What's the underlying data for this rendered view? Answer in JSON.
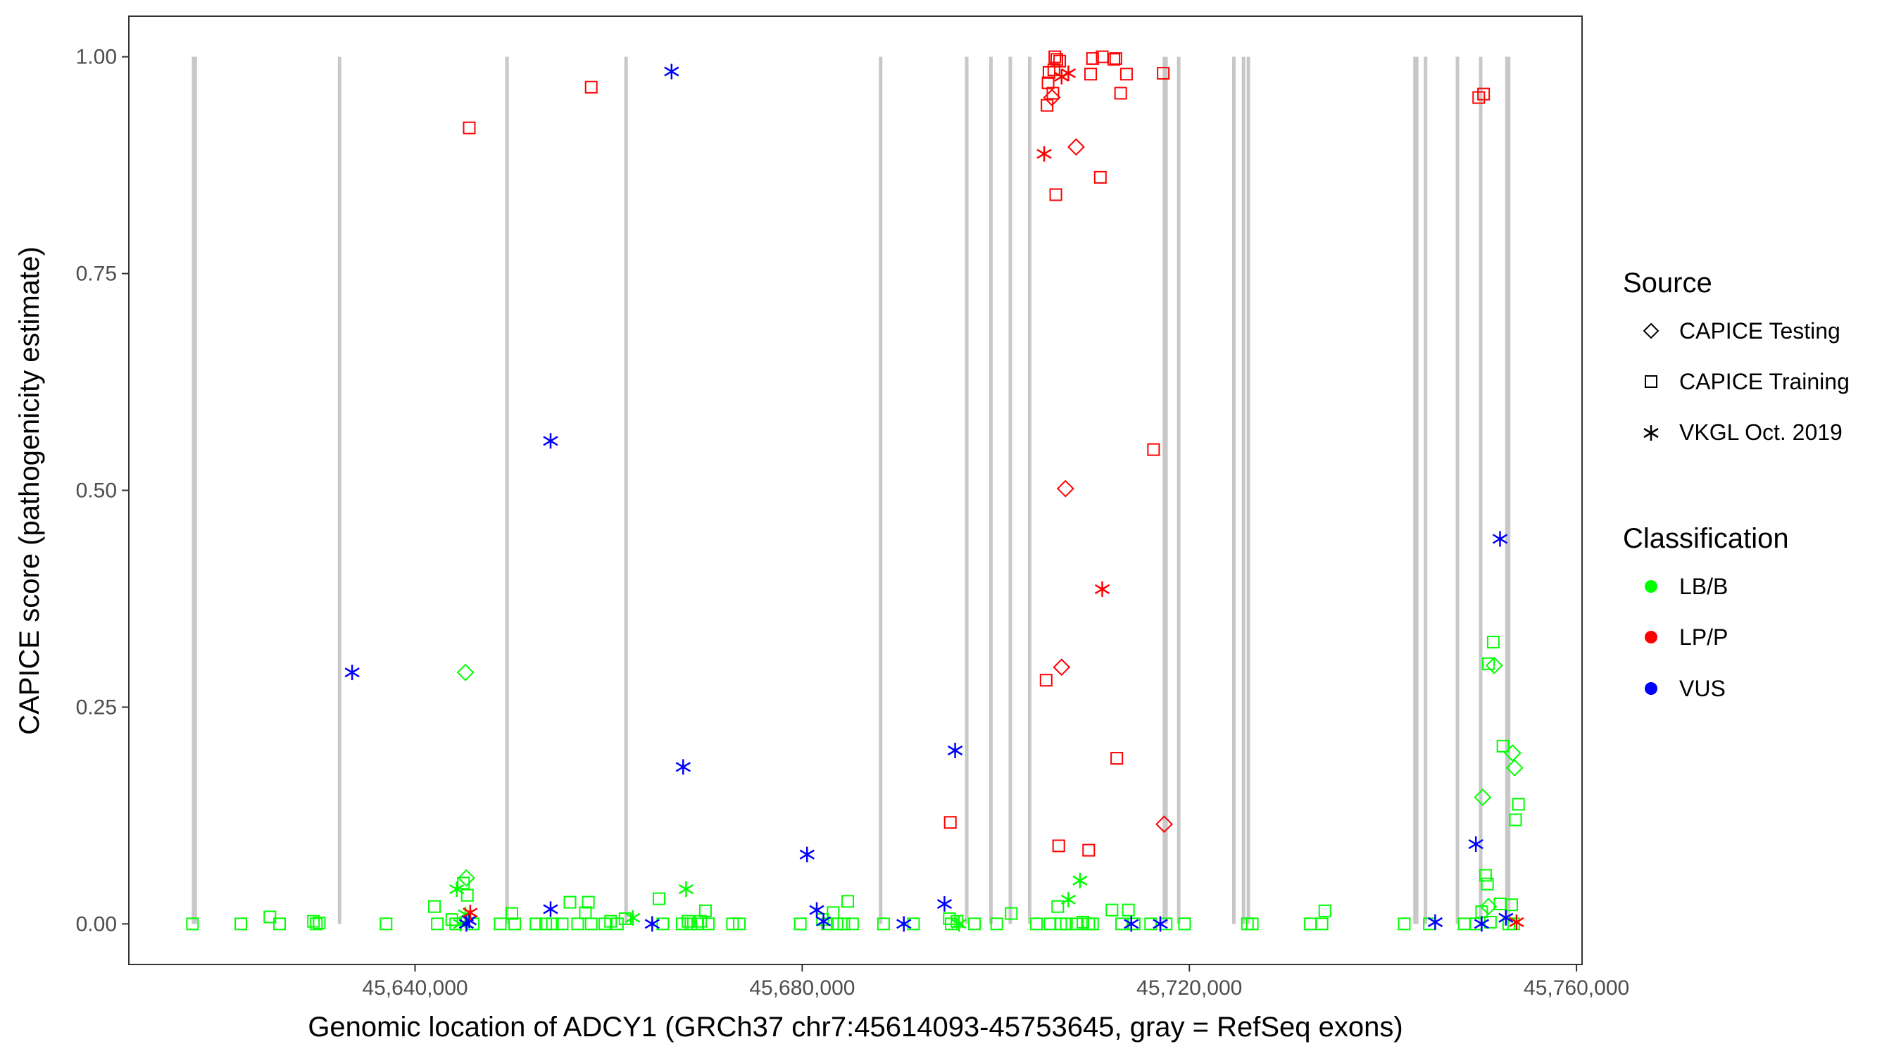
{
  "chart_data": {
    "type": "scatter",
    "xlabel": "Genomic location of ADCY1 (GRCh37 chr7:45614093-45753645, gray = RefSeq exons)",
    "ylabel": "CAPICE score (pathogenicity estimate)",
    "xlim": [
      45610500,
      45760500
    ],
    "ylim": [
      -0.046,
      1.046
    ],
    "x_ticks": [
      {
        "value": 45640000,
        "label": "45,640,000"
      },
      {
        "value": 45680000,
        "label": "45,680,000"
      },
      {
        "value": 45720000,
        "label": "45,720,000"
      },
      {
        "value": 45760000,
        "label": "45,760,000"
      }
    ],
    "y_ticks": [
      {
        "value": 0.0,
        "label": "0.00"
      },
      {
        "value": 0.25,
        "label": "0.25"
      },
      {
        "value": 0.5,
        "label": "0.50"
      },
      {
        "value": 0.75,
        "label": "0.75"
      },
      {
        "value": 1.0,
        "label": "1.00"
      }
    ],
    "grid": false,
    "legend_position": "right",
    "exons": [
      {
        "x": 45617200,
        "w": 0.9
      },
      {
        "x": 45632200,
        "w": 0.5
      },
      {
        "x": 45649500,
        "w": 0.5
      },
      {
        "x": 45661800,
        "w": 0.5
      },
      {
        "x": 45688100,
        "w": 0.5
      },
      {
        "x": 45697000,
        "w": 0.5
      },
      {
        "x": 45699500,
        "w": 0.5
      },
      {
        "x": 45701500,
        "w": 0.5
      },
      {
        "x": 45703500,
        "w": 0.5
      },
      {
        "x": 45717500,
        "w": 0.9
      },
      {
        "x": 45718900,
        "w": 0.5
      },
      {
        "x": 45724600,
        "w": 0.5
      },
      {
        "x": 45725600,
        "w": 0.5
      },
      {
        "x": 45726100,
        "w": 0.5
      },
      {
        "x": 45743400,
        "w": 0.9
      },
      {
        "x": 45744400,
        "w": 0.5
      },
      {
        "x": 45747700,
        "w": 0.5
      },
      {
        "x": 45750100,
        "w": 0.5
      },
      {
        "x": 45752900,
        "w": 0.9
      }
    ],
    "legend": {
      "source_title": "Source",
      "source_items": [
        {
          "label": "CAPICE Testing",
          "shape": "diamond"
        },
        {
          "label": "CAPICE Training",
          "shape": "square"
        },
        {
          "label": "VKGL Oct. 2019",
          "shape": "star"
        }
      ],
      "class_title": "Classification",
      "class_items": [
        {
          "label": "LB/B",
          "color": "#00ff00"
        },
        {
          "label": "LP/P",
          "color": "#ff0000"
        },
        {
          "label": "VUS",
          "color": "#0000ff"
        }
      ]
    },
    "colors": {
      "LB/B": "#00ff00",
      "LP/P": "#ff0000",
      "VUS": "#0000ff"
    },
    "series": [
      {
        "source": "CAPICE Training",
        "classification": "LB/B",
        "shape": "square",
        "points": [
          [
            45617000,
            0.0
          ],
          [
            45622000,
            0.0
          ],
          [
            45625000,
            0.008
          ],
          [
            45626000,
            0.0
          ],
          [
            45629500,
            0.003
          ],
          [
            45629800,
            0.0
          ],
          [
            45630100,
            0.001
          ],
          [
            45637000,
            0.0
          ],
          [
            45642000,
            0.02
          ],
          [
            45642300,
            0.0
          ],
          [
            45643800,
            0.005
          ],
          [
            45644200,
            0.0
          ],
          [
            45645000,
            0.047
          ],
          [
            45645400,
            0.033
          ],
          [
            45646000,
            0.0
          ],
          [
            45648800,
            0.0
          ],
          [
            45650000,
            0.012
          ],
          [
            45650300,
            0.0
          ],
          [
            45652500,
            0.0
          ],
          [
            45653500,
            0.0
          ],
          [
            45654200,
            0.0
          ],
          [
            45655200,
            0.0
          ],
          [
            45656000,
            0.025
          ],
          [
            45656800,
            0.0
          ],
          [
            45657600,
            0.013
          ],
          [
            45657900,
            0.025
          ],
          [
            45658200,
            0.0
          ],
          [
            45659600,
            0.0
          ],
          [
            45660200,
            0.003
          ],
          [
            45660900,
            0.0
          ],
          [
            45661700,
            0.006
          ],
          [
            45665200,
            0.029
          ],
          [
            45665600,
            0.0
          ],
          [
            45667600,
            0.0
          ],
          [
            45668200,
            0.003
          ],
          [
            45668500,
            0.0
          ],
          [
            45669200,
            0.0
          ],
          [
            45669500,
            0.003
          ],
          [
            45670000,
            0.015
          ],
          [
            45670300,
            0.0
          ],
          [
            45672800,
            0.0
          ],
          [
            45673500,
            0.0
          ],
          [
            45679800,
            0.0
          ],
          [
            45682100,
            0.005
          ],
          [
            45682600,
            0.0
          ],
          [
            45683200,
            0.013
          ],
          [
            45683600,
            0.0
          ],
          [
            45684300,
            0.0
          ],
          [
            45684700,
            0.026
          ],
          [
            45685200,
            0.0
          ],
          [
            45688400,
            0.0
          ],
          [
            45691500,
            0.0
          ],
          [
            45695200,
            0.006
          ],
          [
            45695400,
            0.0
          ],
          [
            45696000,
            0.003
          ],
          [
            45697800,
            0.0
          ],
          [
            45700100,
            0.0
          ],
          [
            45701600,
            0.012
          ],
          [
            45704200,
            0.0
          ],
          [
            45705600,
            0.0
          ],
          [
            45706400,
            0.02
          ],
          [
            45706700,
            0.0
          ],
          [
            45707300,
            0.0
          ],
          [
            45708300,
            0.0
          ],
          [
            45709000,
            0.002
          ],
          [
            45709600,
            0.0
          ],
          [
            45710000,
            0.0
          ],
          [
            45712000,
            0.016
          ],
          [
            45713000,
            0.0
          ],
          [
            45713700,
            0.016
          ],
          [
            45714300,
            0.0
          ],
          [
            45716000,
            0.0
          ],
          [
            45717600,
            0.0
          ],
          [
            45719500,
            0.0
          ],
          [
            45726000,
            0.0
          ],
          [
            45726500,
            0.0
          ],
          [
            45732500,
            0.0
          ],
          [
            45733700,
            0.0
          ],
          [
            45734000,
            0.015
          ],
          [
            45742200,
            0.0
          ],
          [
            45744800,
            0.0
          ],
          [
            45748400,
            0.0
          ],
          [
            45749600,
            0.0
          ],
          [
            45750200,
            0.014
          ],
          [
            45750600,
            0.056
          ],
          [
            45750800,
            0.046
          ],
          [
            45750900,
            0.3
          ],
          [
            45751100,
            0.002
          ],
          [
            45751400,
            0.325
          ],
          [
            45752100,
            0.023
          ],
          [
            45752400,
            0.205
          ],
          [
            45753000,
            0.0
          ],
          [
            45753300,
            0.022
          ],
          [
            45753500,
            0.0
          ],
          [
            45753700,
            0.12
          ],
          [
            45754000,
            0.138
          ]
        ]
      },
      {
        "source": "CAPICE Testing",
        "classification": "LB/B",
        "shape": "diamond",
        "points": [
          [
            45645200,
            0.29
          ],
          [
            45645300,
            0.053
          ],
          [
            45750300,
            0.146
          ],
          [
            45750900,
            0.02
          ],
          [
            45751500,
            0.298
          ],
          [
            45753400,
            0.197
          ],
          [
            45753600,
            0.18
          ]
        ]
      },
      {
        "source": "VKGL Oct. 2019",
        "classification": "LB/B",
        "shape": "star",
        "points": [
          [
            45644300,
            0.04
          ],
          [
            45644700,
            0.0
          ],
          [
            45645200,
            0.011
          ],
          [
            45662500,
            0.007
          ],
          [
            45668000,
            0.04
          ],
          [
            45696200,
            0.0
          ],
          [
            45707500,
            0.028
          ],
          [
            45708700,
            0.05
          ]
        ]
      },
      {
        "source": "CAPICE Training",
        "classification": "LP/P",
        "shape": "square",
        "points": [
          [
            45645600,
            0.918
          ],
          [
            45658200,
            0.965
          ],
          [
            45695300,
            0.117
          ],
          [
            45705200,
            0.281
          ],
          [
            45705300,
            0.944
          ],
          [
            45705400,
            0.97
          ],
          [
            45705500,
            0.982
          ],
          [
            45705900,
            0.958
          ],
          [
            45706000,
            0.985
          ],
          [
            45706100,
            1.0
          ],
          [
            45706200,
            0.841
          ],
          [
            45706300,
            0.997
          ],
          [
            45706500,
            0.09
          ],
          [
            45706600,
            0.995
          ],
          [
            45709600,
            0.085
          ],
          [
            45709800,
            0.98
          ],
          [
            45710000,
            0.998
          ],
          [
            45711000,
            1.0
          ],
          [
            45712200,
            0.997
          ],
          [
            45712400,
            0.998
          ],
          [
            45712500,
            0.191
          ],
          [
            45712900,
            0.958
          ],
          [
            45713500,
            0.98
          ],
          [
            45716300,
            0.547
          ],
          [
            45717300,
            0.981
          ],
          [
            45710800,
            0.861
          ],
          [
            45749900,
            0.953
          ],
          [
            45750400,
            0.957
          ]
        ]
      },
      {
        "source": "CAPICE Testing",
        "classification": "LP/P",
        "shape": "diamond",
        "points": [
          [
            45705800,
            0.953
          ],
          [
            45706800,
            0.296
          ],
          [
            45707200,
            0.502
          ],
          [
            45708300,
            0.896
          ],
          [
            45717400,
            0.115
          ]
        ]
      },
      {
        "source": "VKGL Oct. 2019",
        "classification": "LP/P",
        "shape": "star",
        "points": [
          [
            45645700,
            0.013
          ],
          [
            45705000,
            0.888
          ],
          [
            45706800,
            0.977
          ],
          [
            45707500,
            0.981
          ],
          [
            45711000,
            0.386
          ],
          [
            45753800,
            0.002
          ]
        ]
      },
      {
        "source": "VKGL Oct. 2019",
        "classification": "VUS",
        "shape": "star",
        "points": [
          [
            45633500,
            0.29
          ],
          [
            45645300,
            0.0
          ],
          [
            45645600,
            0.004
          ],
          [
            45654000,
            0.557
          ],
          [
            45654000,
            0.017
          ],
          [
            45664500,
            0.0
          ],
          [
            45666500,
            0.983
          ],
          [
            45667700,
            0.181
          ],
          [
            45680500,
            0.08
          ],
          [
            45681500,
            0.016
          ],
          [
            45682200,
            0.003
          ],
          [
            45690500,
            0.0
          ],
          [
            45694700,
            0.023
          ],
          [
            45695800,
            0.2
          ],
          [
            45714000,
            0.0
          ],
          [
            45717000,
            0.0
          ],
          [
            45745400,
            0.002
          ],
          [
            45749600,
            0.092
          ],
          [
            45750200,
            0.0
          ],
          [
            45752100,
            0.444
          ],
          [
            45752700,
            0.007
          ]
        ]
      }
    ]
  }
}
